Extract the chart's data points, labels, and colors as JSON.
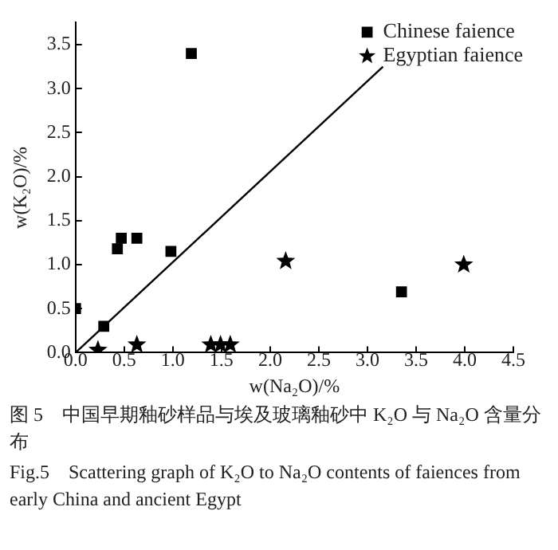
{
  "chart_data": {
    "type": "scatter",
    "xlabel": "w(Na₂O)/%",
    "ylabel": "w(K₂O)/%",
    "xlim": [
      0,
      4.5
    ],
    "ylim": [
      0,
      3.75
    ],
    "xticks": [
      {
        "value": 0,
        "label": "0.0"
      },
      {
        "value": 0.5,
        "label": "0.5"
      },
      {
        "value": 1,
        "label": "1.0"
      },
      {
        "value": 1.5,
        "label": "1.5"
      },
      {
        "value": 2,
        "label": "2.0"
      },
      {
        "value": 2.5,
        "label": "2.5"
      },
      {
        "value": 3,
        "label": "3.0"
      },
      {
        "value": 3.5,
        "label": "3.5"
      },
      {
        "value": 4,
        "label": "4.0"
      },
      {
        "value": 4.5,
        "label": "4.5"
      }
    ],
    "yticks": [
      {
        "value": 0,
        "label": "0.0"
      },
      {
        "value": 0.5,
        "label": "0.5"
      },
      {
        "value": 1,
        "label": "1.0"
      },
      {
        "value": 1.5,
        "label": "1.5"
      },
      {
        "value": 2,
        "label": "2.0"
      },
      {
        "value": 2.5,
        "label": "2.5"
      },
      {
        "value": 3,
        "label": "3.0"
      },
      {
        "value": 3.5,
        "label": "3.5"
      }
    ],
    "grid": false,
    "legend": "top right",
    "series": [
      {
        "name": "Chinese faience",
        "color": "#000000",
        "marker": "square",
        "x": [
          0,
          0.29,
          0.43,
          0.47,
          0.63,
          0.98,
          1.19,
          3.35
        ],
        "values": [
          0.5,
          0.3,
          1.18,
          1.3,
          1.3,
          1.15,
          3.4,
          0.69
        ]
      },
      {
        "name": "Egyptian faience",
        "color": "#000000",
        "marker": "star",
        "x": [
          0.23,
          0.63,
          1.39,
          1.49,
          1.59,
          2.16,
          3.99
        ],
        "values": [
          0.03,
          0.09,
          0.09,
          0.09,
          0.09,
          1.04,
          1.0
        ]
      },
      {
        "type": "line",
        "color": "#000000",
        "marker": "none",
        "x": [
          0,
          3.16
        ],
        "values": [
          0,
          3.25
        ]
      }
    ],
    "annotations": [
      "图 5　中国早期釉砂样品与埃及玻璃釉砂中 K₂O 与 Na₂O 含量分布",
      "Fig.5　Scattering graph of K₂O to Na₂O contents of faiences from early China and ancient Egypt"
    ]
  }
}
